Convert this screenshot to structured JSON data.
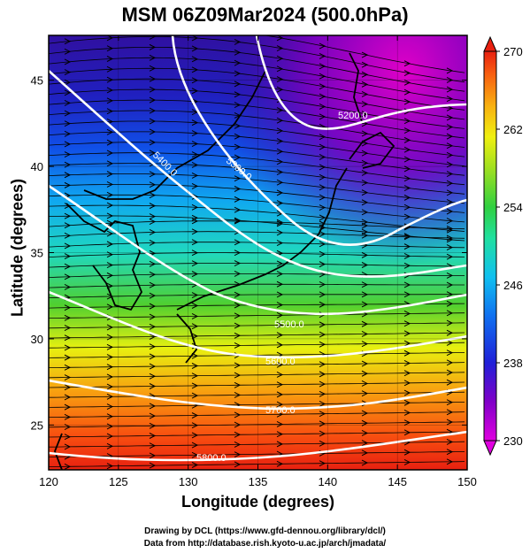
{
  "title": "MSM 06Z09Mar2024 (500.0hPa)",
  "x_axis": {
    "label": "Longitude (degrees)",
    "range": [
      120,
      150
    ],
    "ticks": [
      120,
      125,
      130,
      135,
      140,
      145,
      150
    ]
  },
  "y_axis": {
    "label": "Latitude  (degrees)",
    "range": [
      22.4,
      47.6
    ],
    "ticks": [
      25,
      30,
      35,
      40,
      45
    ]
  },
  "colorbar": {
    "range": [
      230,
      270
    ],
    "ticks": [
      230,
      238,
      246,
      254,
      262,
      270
    ],
    "colors": [
      "#e000e0",
      "#7000c8",
      "#2020d8",
      "#1060f0",
      "#10b0f0",
      "#20e0c0",
      "#30d040",
      "#a0e020",
      "#f0f010",
      "#f8b010",
      "#f86010",
      "#e82010"
    ]
  },
  "contours": [
    {
      "label": "5200.0"
    },
    {
      "label": "5300.0"
    },
    {
      "label": "5400.0"
    },
    {
      "label": "5500.0"
    },
    {
      "label": "5600.0"
    },
    {
      "label": "5700.0"
    },
    {
      "label": "5800.0"
    }
  ],
  "credits": [
    "Drawing by DCL (https://www.gfd-dennou.org/library/dcl/)",
    "Data from http://database.rish.kyoto-u.ac.jp/arch/jmadata/"
  ]
}
